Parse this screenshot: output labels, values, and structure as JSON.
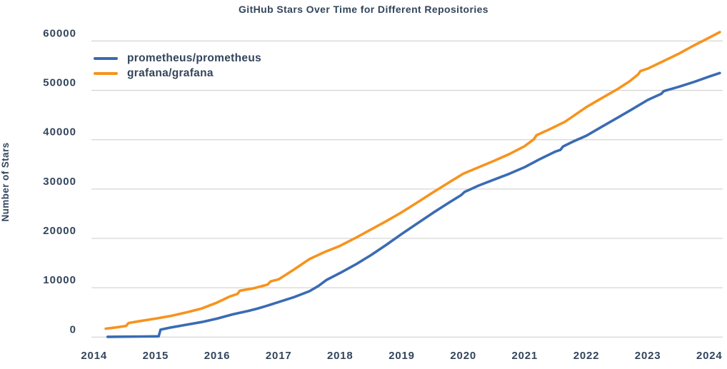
{
  "colors": {
    "text": "#33455C",
    "grid": "#CBCBCB",
    "background": "#FFFFFF"
  },
  "chart_data": {
    "type": "line",
    "title": "GitHub Stars Over Time for Different Repositories",
    "xlabel": "",
    "ylabel": "Number of Stars",
    "x_ticks": [
      2014,
      2015,
      2016,
      2017,
      2018,
      2019,
      2020,
      2021,
      2022,
      2023,
      2024
    ],
    "y_ticks": [
      0,
      10000,
      20000,
      30000,
      40000,
      50000,
      60000
    ],
    "xlim": [
      2013.85,
      2024.3
    ],
    "ylim": [
      0,
      62000
    ],
    "grid": "horizontal",
    "legend_position": "top-left",
    "series": [
      {
        "name": "prometheus/prometheus",
        "color": "#3A6BB3",
        "points": [
          [
            2014.22,
            60
          ],
          [
            2014.5,
            90
          ],
          [
            2014.75,
            110
          ],
          [
            2015.0,
            140
          ],
          [
            2015.05,
            160
          ],
          [
            2015.08,
            1500
          ],
          [
            2015.25,
            1950
          ],
          [
            2015.5,
            2500
          ],
          [
            2015.75,
            3050
          ],
          [
            2016.0,
            3750
          ],
          [
            2016.25,
            4600
          ],
          [
            2016.5,
            5300
          ],
          [
            2016.65,
            5750
          ],
          [
            2016.8,
            6300
          ],
          [
            2017.0,
            7100
          ],
          [
            2017.25,
            8100
          ],
          [
            2017.5,
            9300
          ],
          [
            2017.65,
            10400
          ],
          [
            2017.78,
            11600
          ],
          [
            2018.0,
            13000
          ],
          [
            2018.25,
            14700
          ],
          [
            2018.5,
            16600
          ],
          [
            2018.75,
            18700
          ],
          [
            2019.0,
            20900
          ],
          [
            2019.25,
            23000
          ],
          [
            2019.5,
            25100
          ],
          [
            2019.75,
            27100
          ],
          [
            2019.97,
            28800
          ],
          [
            2020.02,
            29400
          ],
          [
            2020.25,
            30700
          ],
          [
            2020.5,
            31900
          ],
          [
            2020.75,
            33100
          ],
          [
            2021.0,
            34450
          ],
          [
            2021.25,
            36100
          ],
          [
            2021.5,
            37600
          ],
          [
            2021.58,
            37950
          ],
          [
            2021.62,
            38600
          ],
          [
            2021.8,
            39700
          ],
          [
            2022.0,
            40800
          ],
          [
            2022.25,
            42600
          ],
          [
            2022.5,
            44400
          ],
          [
            2022.75,
            46200
          ],
          [
            2023.0,
            48050
          ],
          [
            2023.22,
            49300
          ],
          [
            2023.26,
            49850
          ],
          [
            2023.5,
            50700
          ],
          [
            2023.75,
            51700
          ],
          [
            2024.0,
            52800
          ],
          [
            2024.17,
            53500
          ]
        ]
      },
      {
        "name": "grafana/grafana",
        "color": "#F7931E",
        "points": [
          [
            2014.19,
            1700
          ],
          [
            2014.35,
            1950
          ],
          [
            2014.52,
            2250
          ],
          [
            2014.56,
            2850
          ],
          [
            2014.75,
            3250
          ],
          [
            2015.0,
            3750
          ],
          [
            2015.25,
            4300
          ],
          [
            2015.5,
            5000
          ],
          [
            2015.75,
            5800
          ],
          [
            2016.0,
            7000
          ],
          [
            2016.2,
            8200
          ],
          [
            2016.33,
            8750
          ],
          [
            2016.37,
            9400
          ],
          [
            2016.6,
            9900
          ],
          [
            2016.82,
            10650
          ],
          [
            2016.87,
            11300
          ],
          [
            2017.0,
            11700
          ],
          [
            2017.25,
            13700
          ],
          [
            2017.5,
            15800
          ],
          [
            2017.75,
            17250
          ],
          [
            2018.0,
            18500
          ],
          [
            2018.25,
            20100
          ],
          [
            2018.5,
            21800
          ],
          [
            2018.75,
            23500
          ],
          [
            2019.0,
            25300
          ],
          [
            2019.25,
            27250
          ],
          [
            2019.5,
            29250
          ],
          [
            2019.75,
            31200
          ],
          [
            2020.0,
            33100
          ],
          [
            2020.25,
            34400
          ],
          [
            2020.5,
            35700
          ],
          [
            2020.75,
            37100
          ],
          [
            2021.0,
            38700
          ],
          [
            2021.15,
            40100
          ],
          [
            2021.19,
            40900
          ],
          [
            2021.4,
            42100
          ],
          [
            2021.65,
            43600
          ],
          [
            2022.0,
            46600
          ],
          [
            2022.25,
            48400
          ],
          [
            2022.5,
            50200
          ],
          [
            2022.7,
            51800
          ],
          [
            2022.84,
            53200
          ],
          [
            2022.88,
            53900
          ],
          [
            2023.0,
            54400
          ],
          [
            2023.25,
            55900
          ],
          [
            2023.5,
            57400
          ],
          [
            2023.75,
            59100
          ],
          [
            2024.0,
            60700
          ],
          [
            2024.17,
            61800
          ]
        ]
      }
    ]
  }
}
